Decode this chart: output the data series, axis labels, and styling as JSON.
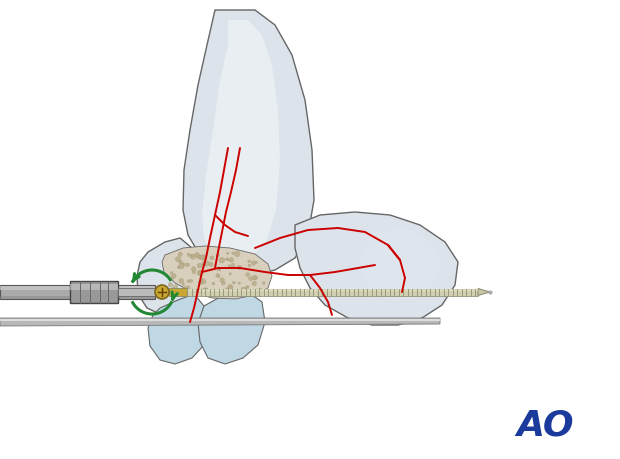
{
  "background_color": "#ffffff",
  "bone_fill": "#dce3ea",
  "bone_fill2": "#cdd6de",
  "bone_outline": "#666666",
  "fracture_line_color": "#cc0000",
  "screw_body_color": "#d0d0b0",
  "screw_thread_color": "#909078",
  "screw_head_color": "#c8a830",
  "arrow_color": "#228833",
  "ao_color": "#1a3a9c",
  "cancellous_color": "#d8d0bc",
  "cartilage_color": "#c0d8e4",
  "tool_color": "#aaaaaa",
  "tool_dark": "#666666",
  "tool_light": "#dddddd"
}
